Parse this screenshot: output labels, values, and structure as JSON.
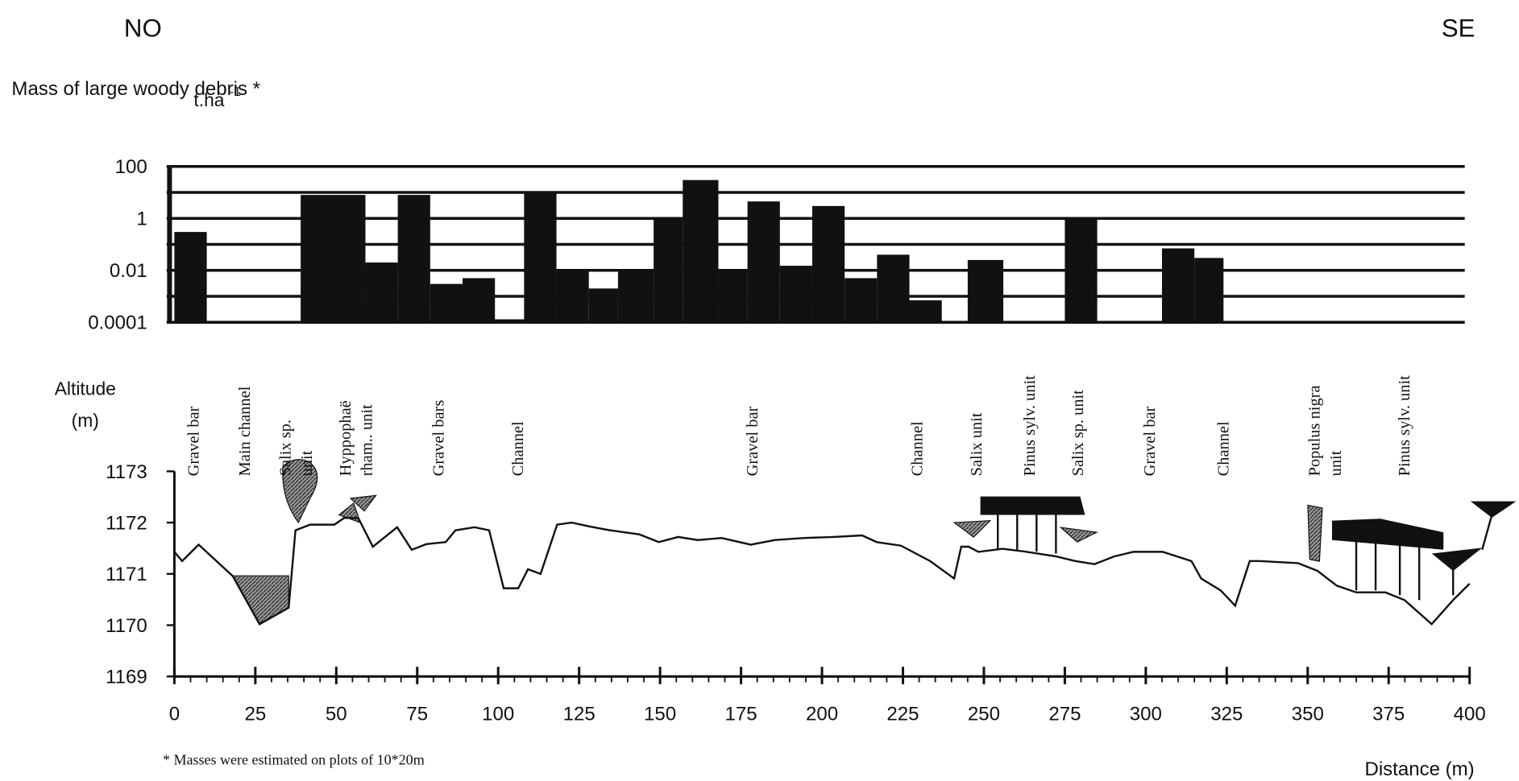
{
  "header": {
    "left": "NO",
    "right": "SE"
  },
  "chart_data": [
    {
      "type": "bar",
      "y_label": "Mass of large woody debris *",
      "y_unit": "t.ha",
      "y_unit_sup": "-1",
      "log_scale": true,
      "ylim": [
        0.0001,
        100
      ],
      "yticks": [
        0.0001,
        0.01,
        1,
        100
      ],
      "minor_grid": [
        0.001,
        0.1,
        10
      ],
      "xlim": [
        0,
        400
      ],
      "color": "#111111",
      "bars": {
        "start": [
          0,
          39,
          59,
          69,
          79,
          89,
          99,
          108,
          118,
          128,
          137,
          148,
          157,
          168,
          177,
          187,
          197,
          207,
          217,
          227,
          245,
          275,
          305,
          315
        ],
        "end": [
          10,
          59,
          69,
          79,
          89,
          99,
          108,
          118,
          128,
          137,
          148,
          157,
          168,
          177,
          187,
          197,
          207,
          217,
          227,
          237,
          256,
          285,
          315,
          324
        ],
        "values": [
          0.3,
          8,
          0.02,
          8,
          0.003,
          0.005,
          0.00013,
          9,
          0.01,
          0.002,
          0.01,
          1,
          30,
          0.01,
          4.5,
          0.015,
          3,
          0.005,
          0.04,
          0.0007,
          0.025,
          0.9,
          0.07,
          0.03
        ]
      }
    },
    {
      "type": "line",
      "y_label": [
        "Altitude",
        "(m)"
      ],
      "x_label": "Distance (m)",
      "color": "#111111",
      "xlim": [
        0,
        400
      ],
      "ylim": [
        1169,
        1173
      ],
      "xticks": [
        0,
        25,
        50,
        75,
        100,
        125,
        150,
        175,
        200,
        225,
        250,
        275,
        300,
        325,
        350,
        375,
        400
      ],
      "yticks": [
        1169,
        1170,
        1171,
        1172,
        1173
      ],
      "x": [
        0,
        2.4,
        7.5,
        18,
        26.3,
        35.3,
        37.4,
        41.9,
        49.4,
        52.4,
        56.8,
        61.3,
        68.8,
        73.3,
        77.8,
        83.8,
        86.8,
        92.7,
        97.2,
        101.7,
        106.2,
        109.2,
        113.1,
        118.2,
        122.7,
        128.6,
        134.6,
        143.6,
        149.6,
        155.6,
        161.6,
        169,
        178,
        185.5,
        194.5,
        203.4,
        212.4,
        216.9,
        224.4,
        233.4,
        240.8,
        243,
        245.3,
        248.3,
        255.8,
        263.3,
        272.3,
        278.2,
        284.2,
        290.2,
        296.2,
        305.2,
        314.1,
        317.1,
        323.1,
        327.6,
        332.1,
        335.1,
        347,
        353,
        359,
        365,
        374,
        379.9,
        388.3,
        394.9,
        400
      ],
      "values": [
        1171.43,
        1171.25,
        1171.57,
        1170.96,
        1170.02,
        1170.34,
        1171.85,
        1171.96,
        1171.96,
        1172.09,
        1172.09,
        1171.53,
        1171.91,
        1171.47,
        1171.58,
        1171.62,
        1171.85,
        1171.91,
        1171.85,
        1170.72,
        1170.72,
        1171.09,
        1171.0,
        1171.96,
        1172.0,
        1171.92,
        1171.85,
        1171.77,
        1171.62,
        1171.72,
        1171.66,
        1171.7,
        1171.57,
        1171.66,
        1171.7,
        1171.72,
        1171.75,
        1171.62,
        1171.55,
        1171.25,
        1170.91,
        1171.53,
        1171.53,
        1171.43,
        1171.49,
        1171.43,
        1171.34,
        1171.25,
        1171.19,
        1171.34,
        1171.43,
        1171.43,
        1171.25,
        1170.91,
        1170.68,
        1170.38,
        1171.25,
        1171.25,
        1171.21,
        1171.06,
        1170.77,
        1170.64,
        1170.64,
        1170.49,
        1170.02,
        1170.49,
        1170.81
      ],
      "annotations": [
        [
          "Gravel bar"
        ],
        [
          "Main channel"
        ],
        [
          "Salix sp.",
          "unit"
        ],
        [
          "Hyppophaë",
          "rham.. unit"
        ],
        [
          "Gravel bars"
        ],
        [
          "Channel"
        ],
        [
          "Gravel bar"
        ],
        [
          "Channel"
        ],
        [
          "Salix unit"
        ],
        [
          "Pinus sylv. unit"
        ],
        [
          "Salix sp. unit"
        ],
        [
          "Gravel bar"
        ],
        [
          "Channel"
        ],
        [
          "Populus nigra",
          "unit"
        ],
        [
          "Pinus sylv. unit"
        ]
      ]
    }
  ],
  "footnote": "* Masses were estimated on plots of 10*20m"
}
